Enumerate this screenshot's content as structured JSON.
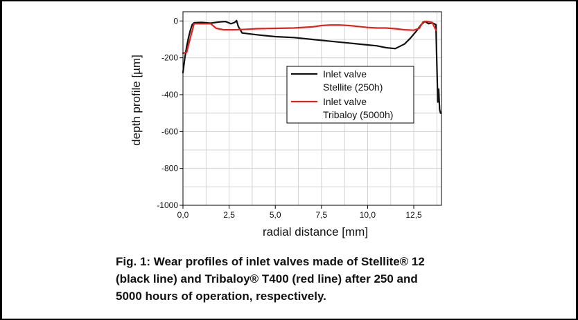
{
  "chart_data": {
    "type": "line",
    "xlabel": "radial distance [mm]",
    "ylabel": "depth profile [µm]",
    "xlim": [
      0,
      14
    ],
    "ylim": [
      -1000,
      50
    ],
    "x_ticks": [
      0,
      2.5,
      5,
      7.5,
      10,
      12.5
    ],
    "x_tick_labels": [
      "0,0",
      "2,5",
      "5,0",
      "7,5",
      "10,0",
      "12,5"
    ],
    "y_ticks": [
      0,
      -200,
      -400,
      -600,
      -800,
      -1000
    ],
    "y_tick_labels": [
      "0",
      "-200",
      "-400",
      "-600",
      "-800",
      "-1000"
    ],
    "grid": true,
    "legend_position": "upper-right",
    "series": [
      {
        "name": "Inlet valve Stellite (250h)",
        "legend_lines": [
          "Inlet valve",
          "Stellite (250h)"
        ],
        "color": "#111111",
        "x": [
          0,
          0.1,
          0.2,
          0.3,
          0.4,
          0.5,
          0.6,
          1.0,
          1.5,
          2.0,
          2.3,
          2.6,
          2.8,
          2.9,
          3.0,
          3.2,
          4.0,
          5.0,
          6.0,
          7.0,
          8.0,
          9.0,
          10.0,
          10.5,
          11.0,
          11.5,
          12.0,
          12.3,
          12.6,
          12.9,
          13.1,
          13.3,
          13.5,
          13.7,
          13.75,
          13.8,
          13.85,
          13.9,
          13.95
        ],
        "y": [
          -280,
          -200,
          -140,
          -90,
          -50,
          -20,
          -10,
          -8,
          -12,
          -5,
          -3,
          -15,
          -8,
          2,
          -30,
          -65,
          -75,
          -85,
          -90,
          -100,
          -110,
          -120,
          -130,
          -135,
          -145,
          -150,
          -125,
          -95,
          -60,
          -20,
          -2,
          -15,
          -10,
          -20,
          -230,
          -440,
          -370,
          -480,
          -500
        ]
      },
      {
        "name": "Inlet valve Tribaloy (5000h)",
        "legend_lines": [
          "Inlet valve",
          "Tribaloy (5000h)"
        ],
        "color": "#e32119",
        "x": [
          0,
          0.2,
          0.4,
          0.6,
          1.0,
          1.5,
          1.8,
          2.2,
          2.8,
          3.5,
          4.0,
          5.0,
          6.0,
          7.0,
          7.5,
          8.0,
          8.5,
          9.0,
          9.5,
          10.0,
          10.5,
          11.0,
          11.5,
          12.0,
          12.5,
          12.8,
          13.0,
          13.2,
          13.5,
          13.7
        ],
        "y": [
          -175,
          -170,
          -90,
          -15,
          -15,
          -15,
          -40,
          -48,
          -48,
          -45,
          -42,
          -40,
          -38,
          -32,
          -25,
          -22,
          -22,
          -25,
          -30,
          -35,
          -38,
          -38,
          -42,
          -48,
          -50,
          -40,
          -5,
          -2,
          -8,
          -50
        ]
      }
    ]
  },
  "caption": {
    "line1": "Fig. 1: Wear profiles of inlet valves made of Stellite® 12",
    "line2": "(black line) and Tribaloy® T400 (red line) after 250 and",
    "line3": "5000 hours of operation, respectively."
  }
}
